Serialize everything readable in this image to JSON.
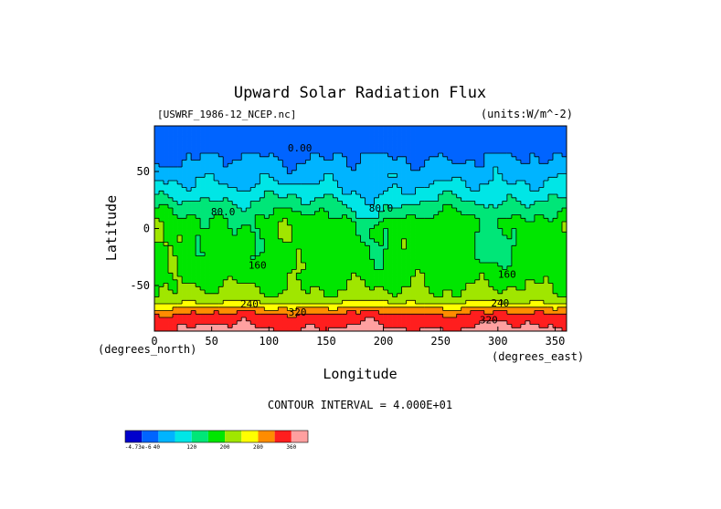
{
  "chart_data": {
    "type": "heatmap",
    "title": "Upward Solar Radiation Flux",
    "file_label": "[USWRF_1986-12_NCEP.nc]",
    "units_label": "(units:W/m^-2)",
    "xlabel": "Longitude",
    "ylabel": "Latitude",
    "x_unit_label": "(degrees_east)",
    "y_unit_label": "(degrees_north)",
    "xlim": [
      0,
      360
    ],
    "ylim": [
      -90,
      90
    ],
    "x_ticks": [
      0,
      50,
      100,
      150,
      200,
      250,
      300,
      350
    ],
    "y_ticks": [
      50,
      0,
      -50
    ],
    "contour_interval_text": "CONTOUR INTERVAL = 4.000E+01",
    "contour_labels": [
      {
        "text": "0.00",
        "lon": 127,
        "lat": 71
      },
      {
        "text": "80.0",
        "lon": 60,
        "lat": 15
      },
      {
        "text": "80.0",
        "lon": 198,
        "lat": 18
      },
      {
        "text": "160",
        "lon": 90,
        "lat": -32
      },
      {
        "text": "160",
        "lon": 308,
        "lat": -40
      },
      {
        "text": "240",
        "lon": 83,
        "lat": -66
      },
      {
        "text": "240",
        "lon": 302,
        "lat": -65
      },
      {
        "text": "320",
        "lon": 125,
        "lat": -73
      },
      {
        "text": "320",
        "lon": 292,
        "lat": -80
      }
    ],
    "lat_profile": [
      {
        "lat": 90,
        "value": 0
      },
      {
        "lat": 72,
        "value": 0
      },
      {
        "lat": 68,
        "value": 30
      },
      {
        "lat": 55,
        "value": 50
      },
      {
        "lat": 40,
        "value": 80
      },
      {
        "lat": 25,
        "value": 120
      },
      {
        "lat": 15,
        "value": 150
      },
      {
        "lat": 5,
        "value": 175
      },
      {
        "lat": -10,
        "value": 180
      },
      {
        "lat": -25,
        "value": 175
      },
      {
        "lat": -40,
        "value": 185
      },
      {
        "lat": -52,
        "value": 200
      },
      {
        "lat": -60,
        "value": 215
      },
      {
        "lat": -65,
        "value": 240
      },
      {
        "lat": -70,
        "value": 285
      },
      {
        "lat": -75,
        "value": 325
      },
      {
        "lat": -80,
        "value": 345
      },
      {
        "lat": -90,
        "value": 370
      }
    ],
    "colorbar": {
      "colors": [
        "#0000cc",
        "#0064ff",
        "#00b4ff",
        "#00e6e6",
        "#00e678",
        "#00e600",
        "#a0e600",
        "#ffff00",
        "#ff8c00",
        "#ff1e1e",
        "#ffa0a0"
      ],
      "tick_labels": [
        "-4.73e-6",
        "40",
        "120",
        "200",
        "280",
        "360"
      ],
      "levels": [
        0,
        40,
        80,
        120,
        160,
        200,
        240,
        280,
        320,
        360
      ]
    }
  }
}
